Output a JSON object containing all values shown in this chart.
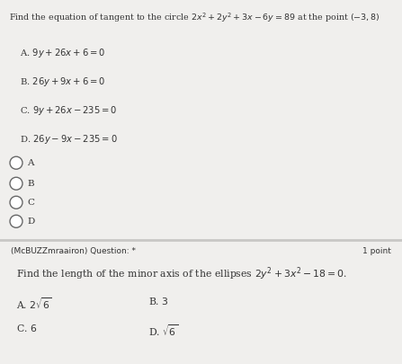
{
  "section1_bg": "#f0efed",
  "section2_bg": "#e8e7e5",
  "divider_color": "#c8c7c5",
  "text_color": "#333333",
  "radio_color": "#666666",
  "title_q1": "Find the equation of tangent to the circle $2x^2+2y^2+3x-6y=89$ at the point $(-3,8)$",
  "options_q1": [
    "A. $9y+26x+6=0$",
    "B. $26y+9x+6=0$",
    "C. $9y+26x-235=0$",
    "D. $26y-9x-235=0$"
  ],
  "radio_labels": [
    "A",
    "B",
    "C",
    "D"
  ],
  "section2_header": "(McBUZZmraairon) Question: *",
  "section2_points": "1 point",
  "title_q2": "Find the length of the minor axis of the ellipses $2y^2+3x^2-18=0$.",
  "options_q2_col1_row1": "A. $2\\sqrt{6}$",
  "options_q2_col1_row2": "C. $6$",
  "options_q2_col2_row1": "B. $3$",
  "options_q2_col2_row2": "D. $\\sqrt{6}$",
  "fig_width": 4.47,
  "fig_height": 4.05,
  "dpi": 100
}
